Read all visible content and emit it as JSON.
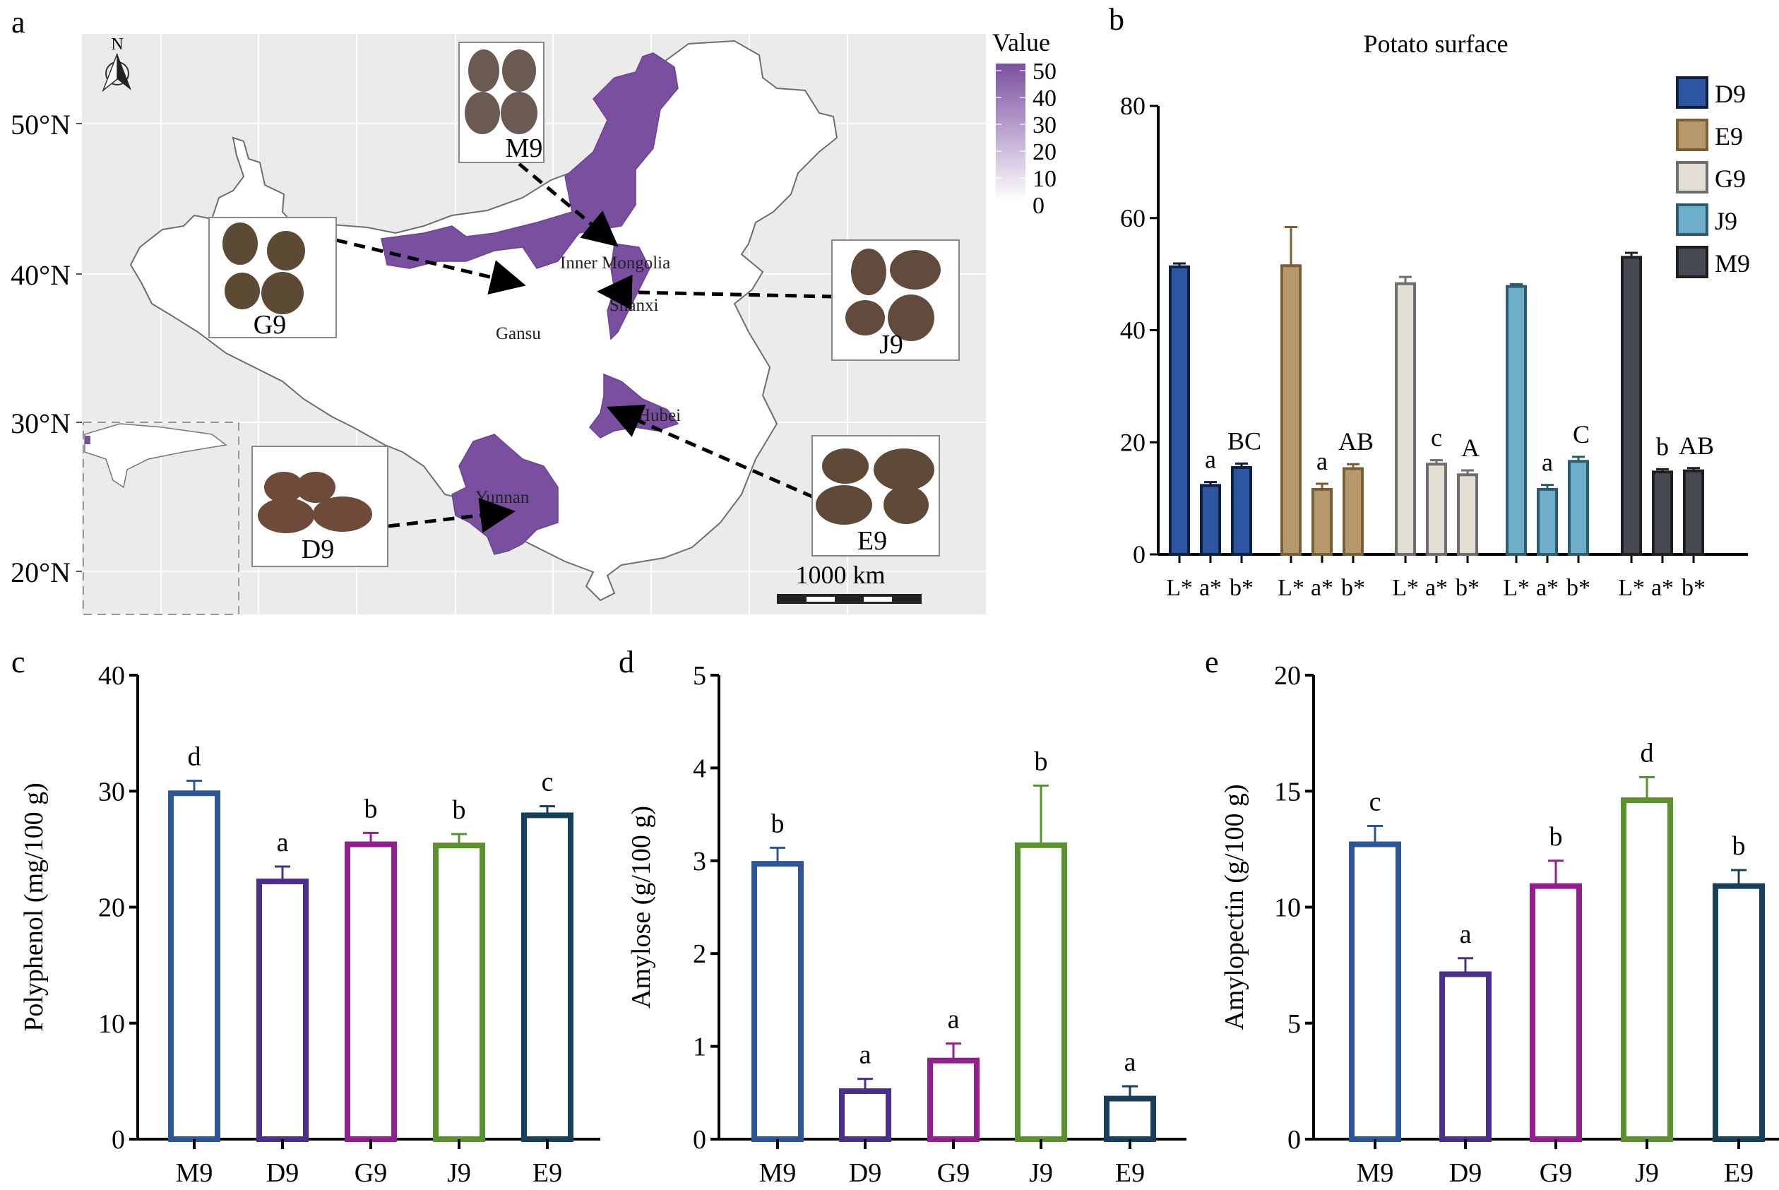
{
  "panels": {
    "a": "a",
    "b": "b",
    "c": "c",
    "d": "d",
    "e": "e"
  },
  "map": {
    "lat_labels": [
      "50°N",
      "40°N",
      "30°N",
      "20°N"
    ],
    "lat_values": [
      50,
      40,
      30,
      20
    ],
    "north_label": "N",
    "scale_label": "1000 km",
    "legend": {
      "title": "Value",
      "ticks": [
        "50",
        "40",
        "30",
        "20",
        "10",
        "0"
      ],
      "color_high": "#7a4fa0",
      "color_low": "#ffffff"
    },
    "region_color": "#7a4fa0",
    "regions": [
      "Inner Mongolia",
      "Shanxi",
      "Gansu",
      "Hubei",
      "Yunnan"
    ],
    "insets": [
      {
        "label": "M9",
        "region": "Inner Mongolia"
      },
      {
        "label": "G9",
        "region": "Gansu"
      },
      {
        "label": "J9",
        "region": "Shanxi"
      },
      {
        "label": "D9",
        "region": "Yunnan"
      },
      {
        "label": "E9",
        "region": "Hubei"
      }
    ]
  },
  "chart_data": [
    {
      "id": "b",
      "type": "bar",
      "title": "Potato surface",
      "xlabel": "",
      "ylabel": "",
      "ylim": [
        0,
        80
      ],
      "yticks": [
        "0",
        "20",
        "40",
        "60",
        "80"
      ],
      "grid": false,
      "legend_position": "top-right",
      "category_labels": [
        "L*",
        "a*",
        "b*"
      ],
      "groups": [
        {
          "name": "D9",
          "color": "#2c56a0",
          "edge": "#0d1f45",
          "values": [
            51.3,
            12.3,
            15.5
          ],
          "errors": [
            0.6,
            0.6,
            0.7
          ],
          "letters": [
            "",
            "a",
            "BC"
          ]
        },
        {
          "name": "E9",
          "color": "#b5996b",
          "edge": "#7a5f35",
          "values": [
            51.5,
            11.6,
            15.3
          ],
          "errors": [
            6.9,
            1.0,
            0.8
          ],
          "letters": [
            "",
            "a",
            "AB"
          ]
        },
        {
          "name": "G9",
          "color": "#e3ded4",
          "edge": "#6e6e6e",
          "values": [
            48.3,
            16.1,
            14.2
          ],
          "errors": [
            1.2,
            0.7,
            0.8
          ],
          "letters": [
            "",
            "c",
            "A"
          ]
        },
        {
          "name": "J9",
          "color": "#6faec9",
          "edge": "#2d5c6e",
          "values": [
            47.8,
            11.6,
            16.6
          ],
          "errors": [
            0.4,
            0.8,
            0.8
          ],
          "letters": [
            "",
            "a",
            "C"
          ]
        },
        {
          "name": "M9",
          "color": "#474a50",
          "edge": "#1e1f22",
          "values": [
            53.0,
            14.7,
            14.9
          ],
          "errors": [
            0.8,
            0.5,
            0.5
          ],
          "letters": [
            "",
            "b",
            "AB"
          ]
        }
      ]
    },
    {
      "id": "c",
      "type": "bar",
      "title": "",
      "xlabel": "",
      "ylabel": "Polyphenol (mg/100 g)",
      "ylim": [
        0,
        40
      ],
      "yticks": [
        "0",
        "10",
        "20",
        "30",
        "40"
      ],
      "categories": [
        "M9",
        "D9",
        "G9",
        "J9",
        "E9"
      ],
      "colors": [
        "#2c5697",
        "#4a2f8c",
        "#931e8e",
        "#5a922d",
        "#16405b"
      ],
      "values": [
        30.0,
        22.4,
        25.6,
        25.5,
        28.1
      ],
      "errors": [
        0.9,
        1.1,
        0.8,
        0.8,
        0.6
      ],
      "letters": [
        "d",
        "a",
        "b",
        "b",
        "c"
      ]
    },
    {
      "id": "d",
      "type": "bar",
      "title": "",
      "xlabel": "",
      "ylabel": "Amylose (g/100 g)",
      "ylim": [
        0,
        5
      ],
      "yticks": [
        "0",
        "1",
        "2",
        "3",
        "4",
        "5"
      ],
      "categories": [
        "M9",
        "D9",
        "G9",
        "J9",
        "E9"
      ],
      "colors": [
        "#2c5697",
        "#4a2f8c",
        "#931e8e",
        "#5a922d",
        "#16405b"
      ],
      "values": [
        2.99,
        0.54,
        0.87,
        3.19,
        0.46
      ],
      "errors": [
        0.15,
        0.11,
        0.16,
        0.62,
        0.11
      ],
      "letters": [
        "b",
        "a",
        "a",
        "b",
        "a"
      ]
    },
    {
      "id": "e",
      "type": "bar",
      "title": "",
      "xlabel": "",
      "ylabel": "Amylopectin (g/100 g)",
      "ylim": [
        0,
        20
      ],
      "yticks": [
        "0",
        "5",
        "10",
        "15",
        "20"
      ],
      "categories": [
        "M9",
        "D9",
        "G9",
        "J9",
        "E9"
      ],
      "colors": [
        "#2c5697",
        "#4a2f8c",
        "#931e8e",
        "#5a922d",
        "#16405b"
      ],
      "values": [
        12.8,
        7.2,
        11.0,
        14.7,
        11.0
      ],
      "errors": [
        0.7,
        0.6,
        1.0,
        0.9,
        0.6
      ],
      "letters": [
        "c",
        "a",
        "b",
        "d",
        "b"
      ]
    }
  ]
}
